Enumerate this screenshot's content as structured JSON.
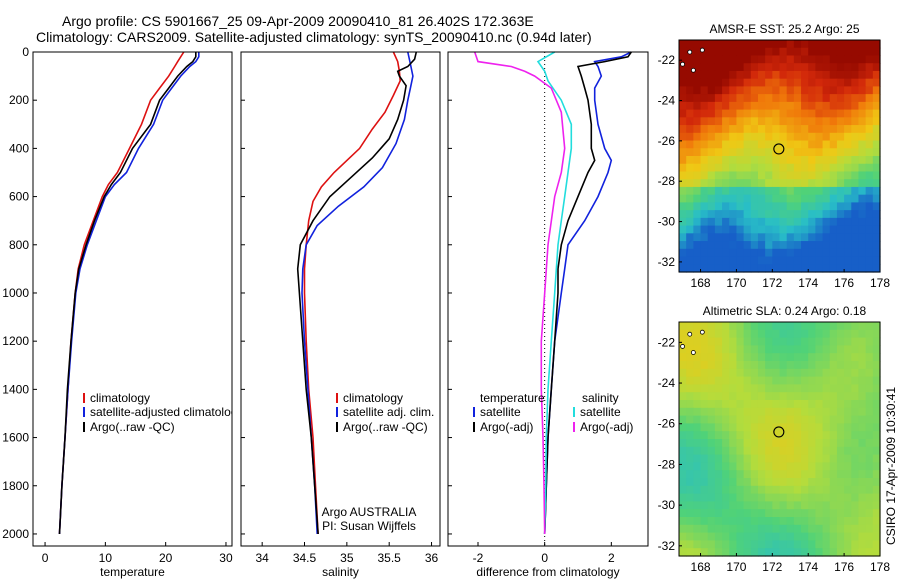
{
  "header": {
    "line1": "Argo profile: CS 5901667_25 09-Apr-2009 20090410_81 26.402S 172.363E",
    "line2": "Climatology: CARS2009. Satellite-adjusted climatology: synTS_20090410.nc (0.94d later)"
  },
  "side_stamp": "CSIRO 17-Apr-2009 10:30:41",
  "colors": {
    "climatology": "#dd1111",
    "satellite": "#1122dd",
    "argo": "#000000",
    "sat_salinity": "#22dddd",
    "argo_salinity": "#ee22ee",
    "sst_warm": "#aa1100",
    "sla_low": "#22aa77"
  },
  "chart_data": [
    {
      "id": "temperature",
      "type": "line",
      "xlabel": "temperature",
      "ylabel": "",
      "xlim": [
        -2,
        31
      ],
      "ylim": [
        2050,
        0
      ],
      "xticks": [
        0,
        10,
        20,
        30
      ],
      "yticks": [
        0,
        200,
        400,
        600,
        800,
        1000,
        1200,
        1400,
        1600,
        1800,
        2000
      ],
      "legend": {
        "position": "bottom-right",
        "entries": [
          "climatology",
          "satellite-adjusted climatology",
          "Argo(..raw -QC)"
        ]
      },
      "series": [
        {
          "name": "climatology",
          "color": "#dd1111",
          "points": [
            [
              23,
              0
            ],
            [
              22.5,
              20
            ],
            [
              22,
              40
            ],
            [
              21.5,
              60
            ],
            [
              20.5,
              100
            ],
            [
              19,
              150
            ],
            [
              17.5,
              200
            ],
            [
              16,
              300
            ],
            [
              14,
              400
            ],
            [
              12,
              500
            ],
            [
              10.5,
              550
            ],
            [
              9.5,
              600
            ],
            [
              8,
              700
            ],
            [
              6.5,
              800
            ],
            [
              5.5,
              900
            ],
            [
              5,
              1000
            ],
            [
              4.3,
              1200
            ],
            [
              3.8,
              1400
            ],
            [
              3.3,
              1600
            ],
            [
              2.8,
              1800
            ],
            [
              2.4,
              2000
            ]
          ]
        },
        {
          "name": "satellite-adjusted climatology",
          "color": "#1122dd",
          "points": [
            [
              25.5,
              0
            ],
            [
              25.5,
              20
            ],
            [
              25,
              40
            ],
            [
              24,
              60
            ],
            [
              22.5,
              100
            ],
            [
              21,
              150
            ],
            [
              19.5,
              200
            ],
            [
              18,
              300
            ],
            [
              15.5,
              400
            ],
            [
              13.5,
              500
            ],
            [
              11.5,
              550
            ],
            [
              10,
              600
            ],
            [
              8.5,
              700
            ],
            [
              7,
              800
            ],
            [
              5.8,
              900
            ],
            [
              5.1,
              1000
            ],
            [
              4.4,
              1200
            ],
            [
              3.8,
              1400
            ],
            [
              3.3,
              1600
            ],
            [
              2.8,
              1800
            ],
            [
              2.4,
              2000
            ]
          ]
        },
        {
          "name": "Argo(..raw -QC)",
          "color": "#000000",
          "points": [
            [
              25,
              0
            ],
            [
              25,
              20
            ],
            [
              24.5,
              40
            ],
            [
              23.5,
              60
            ],
            [
              22,
              100
            ],
            [
              20.5,
              150
            ],
            [
              19,
              200
            ],
            [
              17.5,
              300
            ],
            [
              14.5,
              400
            ],
            [
              12.5,
              500
            ],
            [
              11,
              550
            ],
            [
              9.8,
              600
            ],
            [
              8.2,
              700
            ],
            [
              6.8,
              800
            ],
            [
              5.6,
              900
            ],
            [
              5,
              1000
            ],
            [
              4.3,
              1200
            ],
            [
              3.7,
              1400
            ],
            [
              3.3,
              1600
            ],
            [
              2.8,
              1800
            ],
            [
              2.4,
              2000
            ]
          ]
        }
      ]
    },
    {
      "id": "salinity",
      "type": "line",
      "xlabel": "salinity",
      "ylabel": "",
      "xlim": [
        33.75,
        36.1
      ],
      "ylim": [
        2050,
        0
      ],
      "xticks": [
        34,
        34.5,
        35,
        35.5,
        36
      ],
      "xticklabels": [
        "34",
        "34.5",
        "35",
        "35.5",
        "36"
      ],
      "legend": {
        "position": "bottom-right",
        "entries": [
          "climatology",
          "satellite adj. clim.",
          "Argo(..raw -QC)"
        ]
      },
      "annotations": [
        "Argo AUSTRALIA",
        "PI: Susan Wijffels"
      ],
      "series": [
        {
          "name": "climatology",
          "color": "#dd1111",
          "points": [
            [
              35.55,
              0
            ],
            [
              35.6,
              40
            ],
            [
              35.62,
              80
            ],
            [
              35.63,
              120
            ],
            [
              35.55,
              180
            ],
            [
              35.45,
              250
            ],
            [
              35.3,
              320
            ],
            [
              35.15,
              400
            ],
            [
              35,
              450
            ],
            [
              34.85,
              500
            ],
            [
              34.7,
              560
            ],
            [
              34.6,
              620
            ],
            [
              34.55,
              700
            ],
            [
              34.52,
              800
            ],
            [
              34.5,
              900
            ],
            [
              34.5,
              1000
            ],
            [
              34.52,
              1200
            ],
            [
              34.55,
              1400
            ],
            [
              34.6,
              1600
            ],
            [
              34.63,
              1800
            ],
            [
              34.66,
              2000
            ]
          ]
        },
        {
          "name": "satellite adj. clim.",
          "color": "#1122dd",
          "points": [
            [
              35.72,
              0
            ],
            [
              35.75,
              50
            ],
            [
              35.78,
              100
            ],
            [
              35.75,
              150
            ],
            [
              35.72,
              200
            ],
            [
              35.68,
              280
            ],
            [
              35.58,
              380
            ],
            [
              35.42,
              480
            ],
            [
              35.2,
              560
            ],
            [
              34.9,
              640
            ],
            [
              34.65,
              720
            ],
            [
              34.52,
              800
            ],
            [
              34.48,
              900
            ],
            [
              34.47,
              1000
            ],
            [
              34.5,
              1200
            ],
            [
              34.54,
              1400
            ],
            [
              34.58,
              1600
            ],
            [
              34.62,
              1800
            ],
            [
              34.65,
              2000
            ]
          ]
        },
        {
          "name": "Argo(..raw -QC)",
          "color": "#000000",
          "points": [
            [
              35.82,
              0
            ],
            [
              35.8,
              30
            ],
            [
              35.72,
              60
            ],
            [
              35.6,
              80
            ],
            [
              35.62,
              100
            ],
            [
              35.7,
              140
            ],
            [
              35.67,
              200
            ],
            [
              35.6,
              280
            ],
            [
              35.5,
              360
            ],
            [
              35.3,
              440
            ],
            [
              35.05,
              520
            ],
            [
              34.8,
              600
            ],
            [
              34.6,
              700
            ],
            [
              34.45,
              800
            ],
            [
              34.42,
              900
            ],
            [
              34.44,
              1000
            ],
            [
              34.48,
              1200
            ],
            [
              34.52,
              1400
            ],
            [
              34.58,
              1600
            ],
            [
              34.62,
              1800
            ],
            [
              34.66,
              2000
            ]
          ]
        }
      ]
    },
    {
      "id": "difference",
      "type": "line",
      "xlabel": "difference from climatology",
      "ylabel": "",
      "xlim": [
        -2.9,
        3.1
      ],
      "ylim": [
        2050,
        0
      ],
      "xticks": [
        -2,
        0,
        2
      ],
      "legend": {
        "position": "bottom-right",
        "headers": [
          "temperature",
          "salinity"
        ],
        "entries": [
          "satellite",
          "Argo(-adj)",
          "satellite",
          "Argo(-adj)"
        ]
      },
      "series": [
        {
          "name": "temperature satellite",
          "color": "#1122dd",
          "points": [
            [
              2.6,
              0
            ],
            [
              2.3,
              20
            ],
            [
              1.5,
              40
            ],
            [
              1.6,
              60
            ],
            [
              1.7,
              100
            ],
            [
              1.5,
              150
            ],
            [
              1.5,
              200
            ],
            [
              1.6,
              300
            ],
            [
              1.8,
              400
            ],
            [
              2,
              450
            ],
            [
              1.9,
              500
            ],
            [
              1.6,
              600
            ],
            [
              1.2,
              700
            ],
            [
              0.7,
              800
            ],
            [
              0.6,
              900
            ],
            [
              0.5,
              1000
            ],
            [
              0.3,
              1200
            ],
            [
              0.2,
              1400
            ],
            [
              0.1,
              1600
            ],
            [
              0.05,
              1800
            ],
            [
              0,
              2000
            ]
          ]
        },
        {
          "name": "temperature Argo(-adj)",
          "color": "#000000",
          "points": [
            [
              2.6,
              0
            ],
            [
              2.5,
              20
            ],
            [
              1.8,
              40
            ],
            [
              1,
              60
            ],
            [
              1.1,
              100
            ],
            [
              1.2,
              150
            ],
            [
              1.3,
              200
            ],
            [
              1.4,
              300
            ],
            [
              1.4,
              400
            ],
            [
              1.5,
              450
            ],
            [
              1.3,
              500
            ],
            [
              1,
              600
            ],
            [
              0.7,
              700
            ],
            [
              0.5,
              800
            ],
            [
              0.4,
              900
            ],
            [
              0.4,
              1000
            ],
            [
              0.3,
              1200
            ],
            [
              0.2,
              1400
            ],
            [
              0.1,
              1600
            ],
            [
              0.05,
              1800
            ],
            [
              0,
              2000
            ]
          ]
        },
        {
          "name": "salinity satellite",
          "color": "#22dddd",
          "points": [
            [
              0.3,
              0
            ],
            [
              -0.2,
              40
            ],
            [
              0,
              80
            ],
            [
              0.1,
              120
            ],
            [
              0.5,
              200
            ],
            [
              0.8,
              300
            ],
            [
              0.8,
              400
            ],
            [
              0.7,
              500
            ],
            [
              0.6,
              600
            ],
            [
              0.5,
              700
            ],
            [
              0.4,
              800
            ],
            [
              0.3,
              1000
            ],
            [
              0.2,
              1200
            ],
            [
              0.1,
              1400
            ],
            [
              0.05,
              1600
            ],
            [
              0.03,
              1800
            ],
            [
              0,
              2000
            ]
          ]
        },
        {
          "name": "salinity Argo(-adj)",
          "color": "#ee22ee",
          "points": [
            [
              -2.1,
              0
            ],
            [
              -2,
              40
            ],
            [
              -1,
              60
            ],
            [
              -0.6,
              80
            ],
            [
              -0.3,
              100
            ],
            [
              0.2,
              150
            ],
            [
              0.5,
              250
            ],
            [
              0.6,
              400
            ],
            [
              0.5,
              500
            ],
            [
              0.3,
              600
            ],
            [
              0.1,
              800
            ],
            [
              0,
              1000
            ],
            [
              -0.1,
              1200
            ],
            [
              -0.1,
              1400
            ],
            [
              -0.05,
              1600
            ],
            [
              -0.02,
              1800
            ],
            [
              0,
              2000
            ]
          ]
        }
      ]
    },
    {
      "id": "sst_map",
      "type": "heatmap",
      "title": "AMSR-E SST: 25.2 Argo: 25",
      "xlim": [
        166.8,
        178
      ],
      "ylim": [
        -32.5,
        -21
      ],
      "xticks": [
        168,
        170,
        172,
        174,
        176,
        178
      ],
      "yticks": [
        -22,
        -24,
        -26,
        -28,
        -30,
        -32
      ],
      "marker": {
        "lon": 172.363,
        "lat": -26.402
      },
      "value_range": [
        22,
        26.5
      ]
    },
    {
      "id": "sla_map",
      "type": "heatmap",
      "title": "Altimetric SLA: 0.24 Argo: 0.18",
      "xlim": [
        166.8,
        178
      ],
      "ylim": [
        -32.5,
        -21
      ],
      "xticks": [
        168,
        170,
        172,
        174,
        176,
        178
      ],
      "yticks": [
        -22,
        -24,
        -26,
        -28,
        -30,
        -32
      ],
      "marker": {
        "lon": 172.363,
        "lat": -26.402
      },
      "value_range": [
        -0.3,
        0.4
      ]
    }
  ]
}
